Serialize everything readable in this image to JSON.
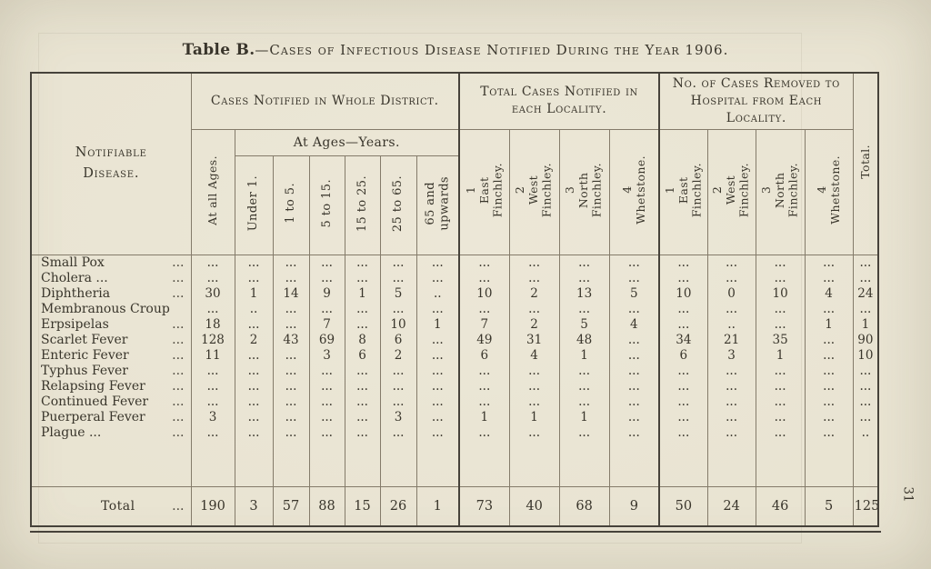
{
  "page_number": "31",
  "title": {
    "bold": "Table B.",
    "rest": "—Cases of Infectious Disease Notified During the Year 1906."
  },
  "table": {
    "disease_header": "Notifiable\nDisease.",
    "group_district": "Cases Notified in Whole District.",
    "group_locality": "Total Cases Notified in each Locality.",
    "group_hospital": "No. of Cases Removed to Hospital from Each Locality.",
    "at_all_ages": "At all Ages.",
    "at_ages_years": "At Ages—Years.",
    "age_cols": [
      "Under 1.",
      "1 to 5.",
      "5 to 15.",
      "15 to 25.",
      "25 to 65.",
      "65 and\nupwards"
    ],
    "locality_cols": [
      "1\nEast\nFinchley.",
      "2\nWest\nFinchley.",
      "3\nNorth\nFinchley.",
      "4\nWhetstone."
    ],
    "total_col": "Total.",
    "rows": [
      {
        "name": "Small Pox",
        "leader": "...",
        "values": [
          "...",
          "...",
          "...",
          "...",
          "...",
          "...",
          "...",
          "...",
          "...",
          "...",
          "...",
          "...",
          "...",
          "...",
          "...",
          "..."
        ]
      },
      {
        "name": "Cholera ...",
        "leader": "...",
        "values": [
          "...",
          "...",
          "...",
          "...",
          "...",
          "...",
          "...",
          "...",
          "...",
          "...",
          "...",
          "...",
          "...",
          "...",
          "...",
          "..."
        ]
      },
      {
        "name": "Diphtheria",
        "leader": "...",
        "values": [
          "30",
          "1",
          "14",
          "9",
          "1",
          "5",
          "..",
          "10",
          "2",
          "13",
          "5",
          "10",
          "0",
          "10",
          "4",
          "24"
        ]
      },
      {
        "name": "Membranous Croup",
        "leader": "",
        "values": [
          "...",
          "..",
          "...",
          "...",
          "...",
          "...",
          "...",
          "...",
          "...",
          "...",
          "...",
          "...",
          "...",
          "...",
          "...",
          "..."
        ]
      },
      {
        "name": "Erpsipelas",
        "leader": "...",
        "values": [
          "18",
          "...",
          "...",
          "7",
          "...",
          "10",
          "1",
          "7",
          "2",
          "5",
          "4",
          "...",
          "..",
          "...",
          "1",
          "1"
        ]
      },
      {
        "name": "Scarlet Fever",
        "leader": "...",
        "values": [
          "128",
          "2",
          "43",
          "69",
          "8",
          "6",
          "...",
          "49",
          "31",
          "48",
          "...",
          "34",
          "21",
          "35",
          "...",
          "90"
        ]
      },
      {
        "name": "Enteric Fever",
        "leader": "...",
        "values": [
          "11",
          "...",
          "...",
          "3",
          "6",
          "2",
          "...",
          "6",
          "4",
          "1",
          "...",
          "6",
          "3",
          "1",
          "...",
          "10"
        ]
      },
      {
        "name": "Typhus Fever",
        "leader": "...",
        "values": [
          "...",
          "...",
          "...",
          "...",
          "...",
          "...",
          "...",
          "...",
          "...",
          "...",
          "...",
          "...",
          "...",
          "...",
          "...",
          "..."
        ]
      },
      {
        "name": "Relapsing Fever",
        "leader": "...",
        "values": [
          "...",
          "...",
          "...",
          "...",
          "...",
          "...",
          "...",
          "...",
          "...",
          "...",
          "...",
          "...",
          "...",
          "...",
          "...",
          "..."
        ]
      },
      {
        "name": "Continued Fever",
        "leader": "...",
        "values": [
          "...",
          "...",
          "...",
          "...",
          "...",
          "...",
          "...",
          "...",
          "...",
          "...",
          "...",
          "...",
          "...",
          "...",
          "...",
          "..."
        ]
      },
      {
        "name": "Puerperal Fever",
        "leader": "...",
        "values": [
          "3",
          "...",
          "...",
          "...",
          "...",
          "3",
          "...",
          "1",
          "1",
          "1",
          "...",
          "...",
          "...",
          "...",
          "...",
          "..."
        ]
      },
      {
        "name": "Plague ...",
        "leader": "...",
        "values": [
          "...",
          "...",
          "...",
          "...",
          "...",
          "...",
          "...",
          "...",
          "...",
          "...",
          "...",
          "...",
          "...",
          "...",
          "...",
          ".."
        ]
      }
    ],
    "total_row": {
      "label": "Total",
      "leader": "...",
      "values": [
        "190",
        "3",
        "57",
        "88",
        "15",
        "26",
        "1",
        "73",
        "40",
        "68",
        "9",
        "50",
        "24",
        "46",
        "5",
        "125"
      ]
    }
  }
}
